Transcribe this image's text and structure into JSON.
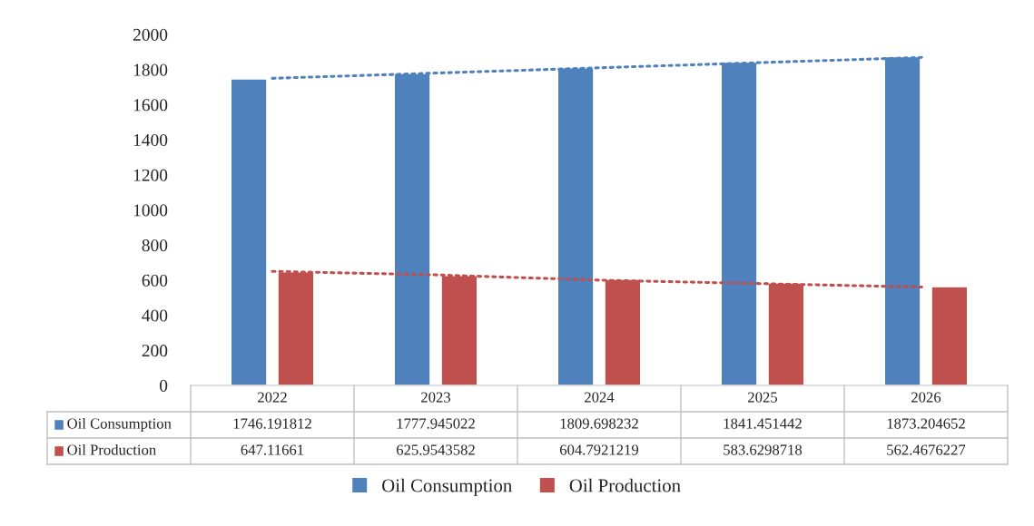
{
  "chart_data": {
    "type": "bar",
    "categories": [
      "2022",
      "2023",
      "2024",
      "2025",
      "2026"
    ],
    "series": [
      {
        "name": "Oil Consumption",
        "color": "#4f81bd",
        "values": [
          1746.191812,
          1777.945022,
          1809.698232,
          1841.451442,
          1873.204652
        ],
        "value_labels": [
          "1746.191812",
          "1777.945022",
          "1809.698232",
          "1841.451442",
          "1873.204652"
        ]
      },
      {
        "name": "Oil Production",
        "color": "#c0504d",
        "values": [
          647.11661,
          625.9543582,
          604.7921219,
          583.6298718,
          562.4676227
        ],
        "value_labels": [
          "647.11661",
          "625.9543582",
          "604.7921219",
          "583.6298718",
          "562.4676227"
        ]
      },
      {
        "type": "line",
        "line_style": "dotted",
        "color": "#4f81bd",
        "values": [
          1750,
          1780,
          1810,
          1840,
          1870
        ]
      },
      {
        "type": "line",
        "line_style": "dotted",
        "color": "#c0504d",
        "values": [
          650,
          630,
          600,
          580,
          560
        ]
      }
    ],
    "ylim": [
      0,
      2000
    ],
    "yticks": [
      0,
      200,
      400,
      600,
      800,
      1000,
      1200,
      1400,
      1600,
      1800,
      2000
    ],
    "grid": false,
    "legend": "bottom"
  }
}
